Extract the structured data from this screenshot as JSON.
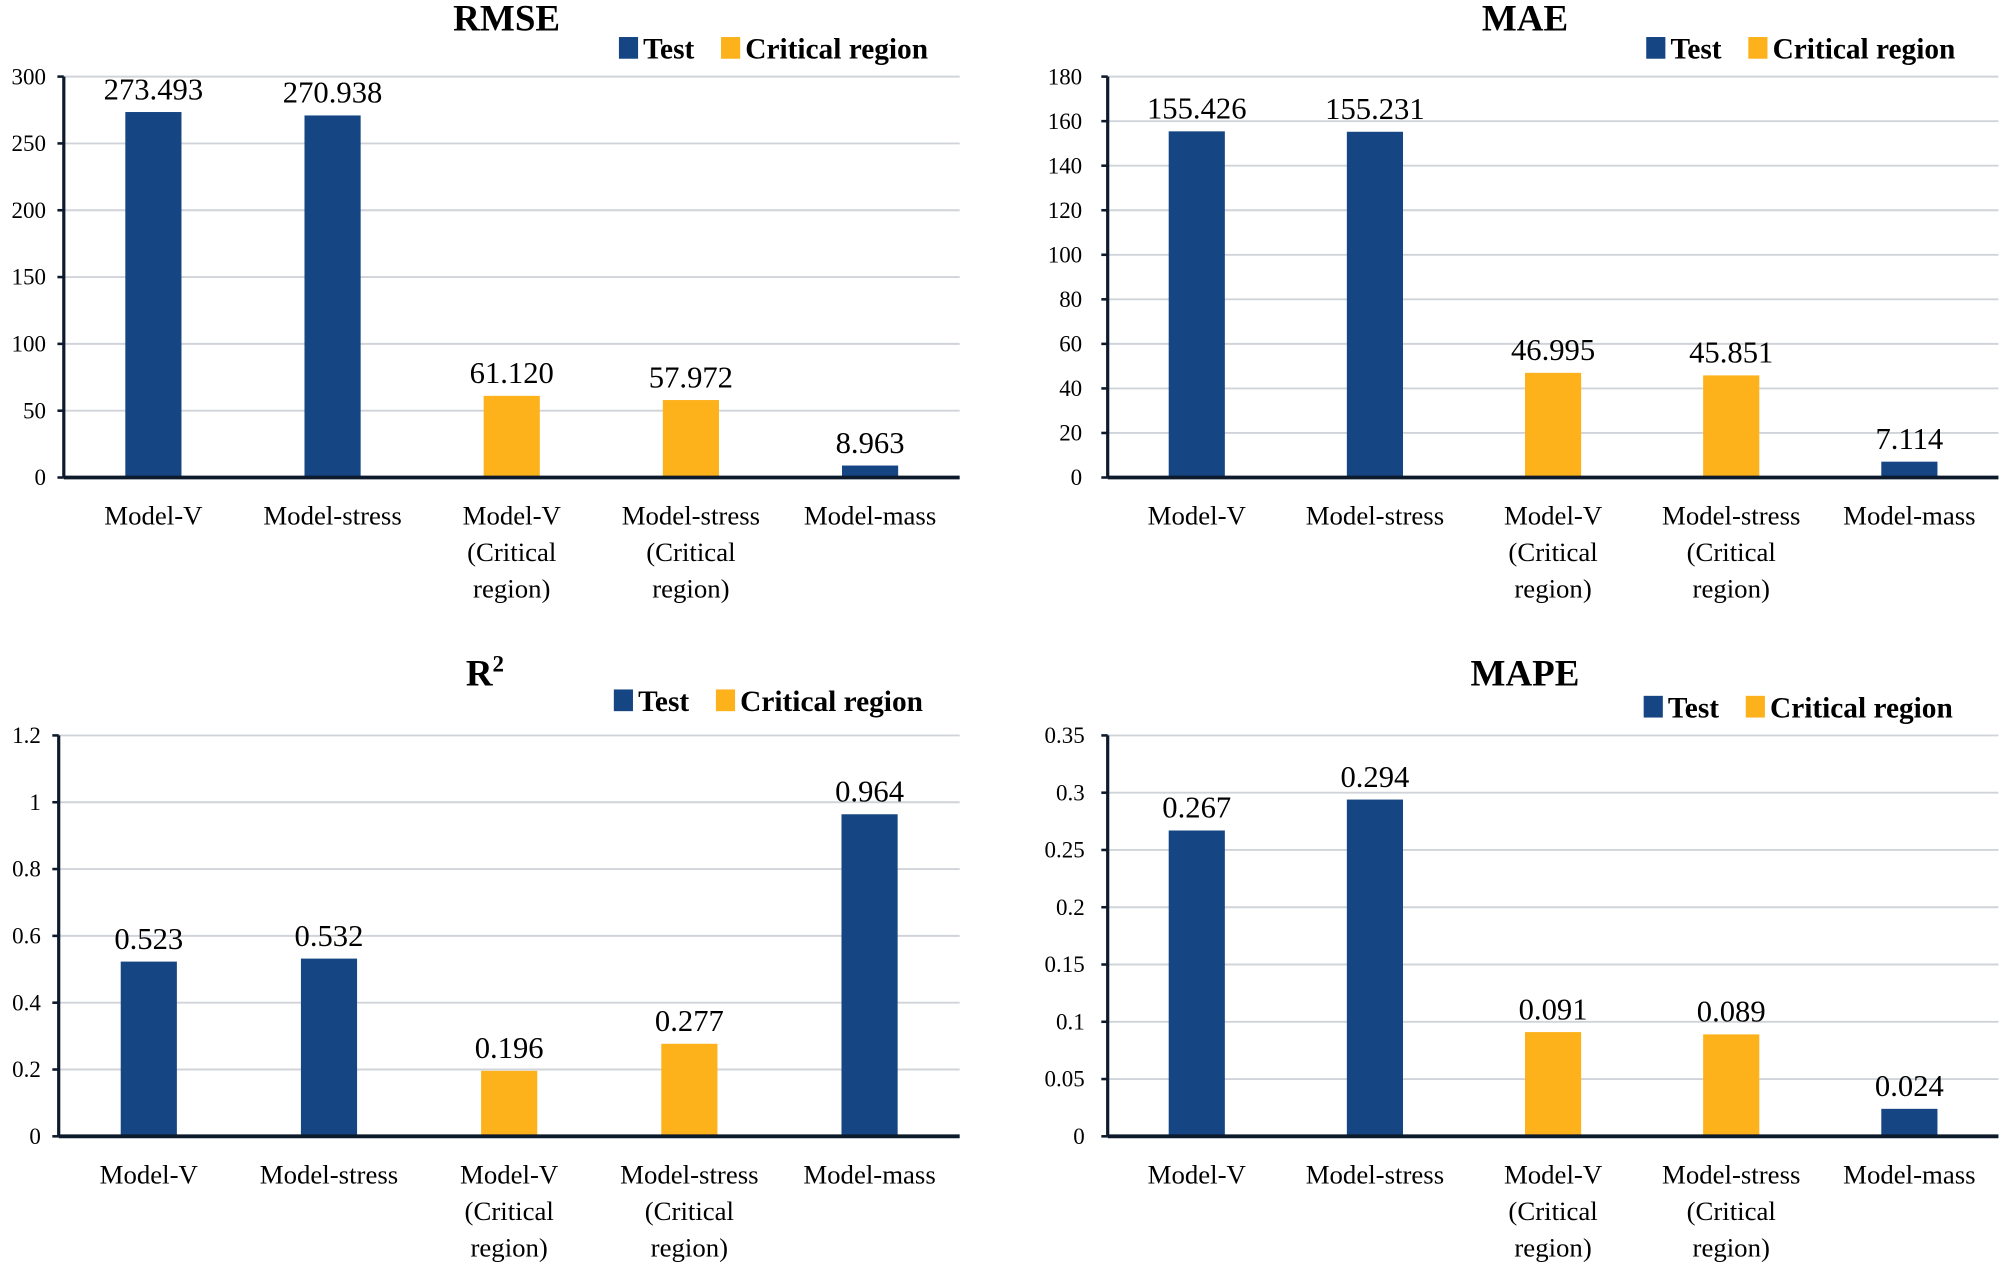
{
  "colors": {
    "test": "#154583",
    "critical": "#FDB11B",
    "grid": "#d0d4da",
    "axis": "#0d1a2b"
  },
  "legend": [
    {
      "label": "Test",
      "key": "test"
    },
    {
      "label": "Critical region",
      "key": "critical"
    }
  ],
  "chart_data": [
    {
      "type": "bar",
      "title": "RMSE",
      "categories": [
        [
          "Model-V"
        ],
        [
          "Model-stress"
        ],
        [
          "Model-V",
          "(Critical",
          "region)"
        ],
        [
          "Model-stress",
          "(Critical",
          "region)"
        ],
        [
          "Model-mass"
        ]
      ],
      "series_key": [
        "test",
        "test",
        "critical",
        "critical",
        "test"
      ],
      "values": [
        273.493,
        270.938,
        61.12,
        57.972,
        8.963
      ],
      "value_labels": [
        "273.493",
        "270.938",
        "61.120",
        "57.972",
        "8.963"
      ],
      "ylim": [
        0,
        300
      ],
      "yticks": [
        "0",
        "50",
        "100",
        "150",
        "200",
        "250",
        "300"
      ],
      "grid": true,
      "legend_position": "top-right"
    },
    {
      "type": "bar",
      "title": "MAE",
      "categories": [
        [
          "Model-V"
        ],
        [
          "Model-stress"
        ],
        [
          "Model-V",
          "(Critical",
          "region)"
        ],
        [
          "Model-stress",
          "(Critical",
          "region)"
        ],
        [
          "Model-mass"
        ]
      ],
      "series_key": [
        "test",
        "test",
        "critical",
        "critical",
        "test"
      ],
      "values": [
        155.426,
        155.231,
        46.995,
        45.851,
        7.114
      ],
      "value_labels": [
        "155.426",
        "155.231",
        "46.995",
        "45.851",
        "7.114"
      ],
      "ylim": [
        0,
        180
      ],
      "yticks": [
        "0",
        "20",
        "40",
        "60",
        "80",
        "100",
        "120",
        "140",
        "160",
        "180"
      ],
      "grid": true,
      "legend_position": "top-right"
    },
    {
      "type": "bar",
      "title": "R",
      "title_sup": "2",
      "categories": [
        [
          "Model-V"
        ],
        [
          "Model-stress"
        ],
        [
          "Model-V",
          "(Critical",
          "region)"
        ],
        [
          "Model-stress",
          "(Critical",
          "region)"
        ],
        [
          "Model-mass"
        ]
      ],
      "series_key": [
        "test",
        "test",
        "critical",
        "critical",
        "test"
      ],
      "values": [
        0.523,
        0.532,
        0.196,
        0.277,
        0.964
      ],
      "value_labels": [
        "0.523",
        "0.532",
        "0.196",
        "0.277",
        "0.964"
      ],
      "ylim": [
        0,
        1.2
      ],
      "yticks": [
        "0",
        "0.2",
        "0.4",
        "0.6",
        "0.8",
        "1",
        "1.2"
      ],
      "grid": true,
      "legend_position": "top-right"
    },
    {
      "type": "bar",
      "title": "MAPE",
      "categories": [
        [
          "Model-V"
        ],
        [
          "Model-stress"
        ],
        [
          "Model-V",
          "(Critical",
          "region)"
        ],
        [
          "Model-stress",
          "(Critical",
          "region)"
        ],
        [
          "Model-mass"
        ]
      ],
      "series_key": [
        "test",
        "test",
        "critical",
        "critical",
        "test"
      ],
      "values": [
        0.267,
        0.294,
        0.091,
        0.089,
        0.024
      ],
      "value_labels": [
        "0.267",
        "0.294",
        "0.091",
        "0.089",
        "0.024"
      ],
      "ylim": [
        0,
        0.35
      ],
      "yticks": [
        "0",
        "0.05",
        "0.1",
        "0.15",
        "0.2",
        "0.25",
        "0.3",
        "0.35"
      ],
      "grid": true,
      "legend_position": "top-right"
    }
  ]
}
